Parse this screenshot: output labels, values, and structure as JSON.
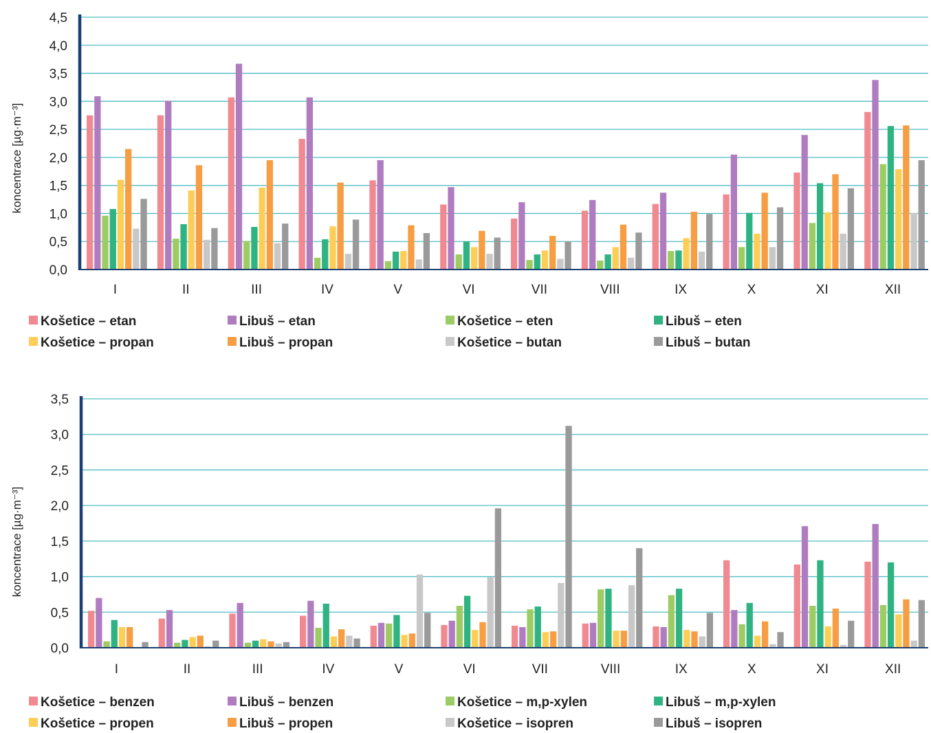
{
  "chart_data": [
    {
      "type": "bar",
      "title": "",
      "xlabel": "",
      "ylabel": "koncentrace [µg·m⁻³]",
      "ylim": [
        0,
        4.5
      ],
      "yticks": [
        "0,0",
        "0,5",
        "1,0",
        "1,5",
        "2,0",
        "2,5",
        "3,0",
        "3,5",
        "4,0",
        "4,5"
      ],
      "grid": true,
      "legend_position": "bottom",
      "categories": [
        "I",
        "II",
        "III",
        "IV",
        "V",
        "VI",
        "VII",
        "VIII",
        "IX",
        "X",
        "XI",
        "XII"
      ],
      "series": [
        {
          "name": "Košetice – etan",
          "color": "#f08a90",
          "values": [
            2.75,
            2.75,
            3.07,
            2.33,
            1.59,
            1.16,
            0.91,
            1.05,
            1.17,
            1.34,
            1.73,
            2.81
          ]
        },
        {
          "name": "Libuš – etan",
          "color": "#b07cc0",
          "values": [
            3.09,
            3.01,
            3.67,
            3.07,
            1.95,
            1.47,
            1.2,
            1.24,
            1.37,
            2.05,
            2.4,
            3.38
          ]
        },
        {
          "name": "Košetice – eten",
          "color": "#9dcc64",
          "values": [
            0.96,
            0.55,
            0.51,
            0.21,
            0.15,
            0.27,
            0.17,
            0.16,
            0.33,
            0.4,
            0.83,
            1.88
          ]
        },
        {
          "name": "Libuš – eten",
          "color": "#2fb383",
          "values": [
            1.08,
            0.81,
            0.76,
            0.54,
            0.32,
            0.5,
            0.27,
            0.27,
            0.34,
            1.01,
            1.54,
            2.56
          ]
        },
        {
          "name": "Košetice – propan",
          "color": "#fdce57",
          "values": [
            1.6,
            1.41,
            1.46,
            0.77,
            0.33,
            0.4,
            0.34,
            0.4,
            0.56,
            0.64,
            1.02,
            1.79
          ]
        },
        {
          "name": "Libuš – propan",
          "color": "#f79d43",
          "values": [
            2.15,
            1.86,
            1.95,
            1.55,
            0.79,
            0.69,
            0.6,
            0.8,
            1.03,
            1.37,
            1.7,
            2.57
          ]
        },
        {
          "name": "Košetice – butan",
          "color": "#c8c8c8",
          "values": [
            0.73,
            0.53,
            0.47,
            0.28,
            0.18,
            0.28,
            0.19,
            0.21,
            0.32,
            0.4,
            0.64,
            1.01
          ]
        },
        {
          "name": "Libuš – butan",
          "color": "#9a9a9a",
          "values": [
            1.26,
            0.74,
            0.82,
            0.89,
            0.65,
            0.57,
            0.5,
            0.66,
            0.99,
            1.11,
            1.45,
            1.95
          ]
        }
      ]
    },
    {
      "type": "bar",
      "title": "",
      "xlabel": "",
      "ylabel": "koncentrace [µg·m⁻³]",
      "ylim": [
        0,
        3.5
      ],
      "yticks": [
        "0,0",
        "0,5",
        "1,0",
        "1,5",
        "2,0",
        "2,5",
        "3,0",
        "3,5"
      ],
      "grid": true,
      "legend_position": "bottom",
      "categories": [
        "I",
        "II",
        "III",
        "IV",
        "V",
        "VI",
        "VII",
        "VIII",
        "IX",
        "X",
        "XI",
        "XII"
      ],
      "series": [
        {
          "name": "Košetice – benzen",
          "color": "#f08a90",
          "values": [
            0.52,
            0.41,
            0.48,
            0.45,
            0.31,
            0.32,
            0.31,
            0.34,
            0.3,
            1.23,
            1.17,
            1.21
          ]
        },
        {
          "name": "Libuš – benzen",
          "color": "#b07cc0",
          "values": [
            0.7,
            0.53,
            0.63,
            0.66,
            0.35,
            0.38,
            0.29,
            0.35,
            0.29,
            0.53,
            1.71,
            1.74
          ]
        },
        {
          "name": "Košetice – m,p-xylen",
          "color": "#9dcc64",
          "values": [
            0.09,
            0.07,
            0.07,
            0.28,
            0.34,
            0.59,
            0.54,
            0.82,
            0.74,
            0.33,
            0.59,
            0.6
          ]
        },
        {
          "name": "Libuš – m,p-xylen",
          "color": "#2fb383",
          "values": [
            0.39,
            0.11,
            0.1,
            0.62,
            0.46,
            0.73,
            0.58,
            0.83,
            0.83,
            0.63,
            1.23,
            1.2
          ]
        },
        {
          "name": "Košetice – propen",
          "color": "#fdce57",
          "values": [
            0.29,
            0.15,
            0.12,
            0.16,
            0.18,
            0.25,
            0.22,
            0.24,
            0.25,
            0.17,
            0.3,
            0.47
          ]
        },
        {
          "name": "Libuš – propen",
          "color": "#f79d43",
          "values": [
            0.29,
            0.17,
            0.09,
            0.26,
            0.2,
            0.36,
            0.23,
            0.24,
            0.23,
            0.37,
            0.55,
            0.68
          ]
        },
        {
          "name": "Košetice – isopren",
          "color": "#c8c8c8",
          "values": [
            0.01,
            0.02,
            0.06,
            0.17,
            1.03,
            0.99,
            0.91,
            0.88,
            0.16,
            0.05,
            0.04,
            0.1
          ]
        },
        {
          "name": "Libuš – isopren",
          "color": "#9a9a9a",
          "values": [
            0.08,
            0.1,
            0.08,
            0.13,
            0.49,
            1.96,
            3.12,
            1.4,
            0.49,
            0.22,
            0.38,
            0.67
          ]
        }
      ]
    }
  ]
}
